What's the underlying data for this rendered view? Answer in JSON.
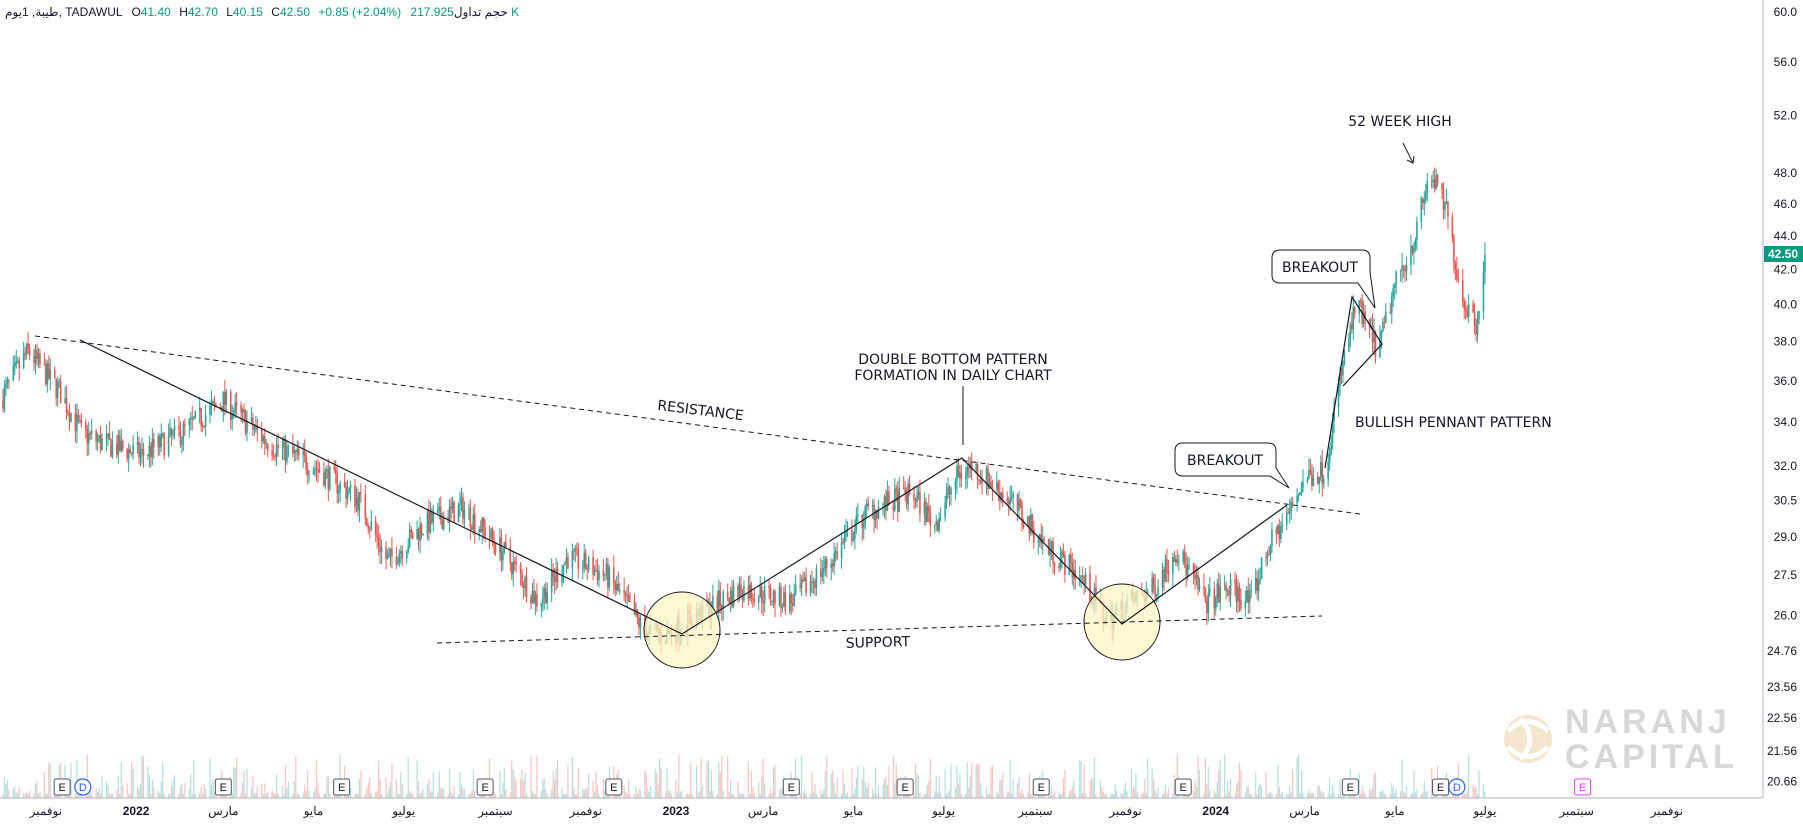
{
  "header": {
    "symbol": "طيبة, 1يوم, TADAWUL",
    "open_label": "O",
    "open": "41.40",
    "high_label": "H",
    "high": "42.70",
    "low_label": "L",
    "low": "40.15",
    "close_label": "C",
    "close": "42.50",
    "change": "+0.85 (+2.04%)",
    "volume_label": "حجم تداول",
    "volume": "217.925 K"
  },
  "price_badge": "42.50",
  "watermark": {
    "line1": "NARANJ",
    "line2": "CAPITAL"
  },
  "colors": {
    "up": "#26a69a",
    "down": "#ef5350",
    "text": "#131722",
    "badge": "#089981",
    "highlight": "#fff6c4",
    "watermark": "#d3d3d3"
  },
  "chart_data": {
    "type": "candlestick",
    "y_scale": "log",
    "ylim": [
      20.2,
      61.0
    ],
    "x_range": [
      "2021-10-01",
      "2025-01-05"
    ],
    "y_ticks": [
      60.0,
      56.0,
      52.0,
      48.0,
      46.0,
      44.0,
      42.0,
      40.0,
      38.0,
      36.0,
      34.0,
      32.0,
      30.5,
      29.0,
      27.5,
      26.0,
      24.76,
      23.56,
      22.56,
      21.56,
      20.66
    ],
    "x_ticks": [
      {
        "date": "2021-11-01",
        "label": "نوفمبر"
      },
      {
        "date": "2022-01-01",
        "label": "2022"
      },
      {
        "date": "2022-03-01",
        "label": "مارس"
      },
      {
        "date": "2022-05-01",
        "label": "مايو"
      },
      {
        "date": "2022-07-01",
        "label": "يوليو"
      },
      {
        "date": "2022-09-01",
        "label": "سبتمبر"
      },
      {
        "date": "2022-11-01",
        "label": "نوفمبر"
      },
      {
        "date": "2023-01-01",
        "label": "2023"
      },
      {
        "date": "2023-03-01",
        "label": "مارس"
      },
      {
        "date": "2023-05-01",
        "label": "مايو"
      },
      {
        "date": "2023-07-01",
        "label": "يوليو"
      },
      {
        "date": "2023-09-01",
        "label": "سبتمبر"
      },
      {
        "date": "2023-11-01",
        "label": "نوفمبر"
      },
      {
        "date": "2024-01-01",
        "label": "2024"
      },
      {
        "date": "2024-03-01",
        "label": "مارس"
      },
      {
        "date": "2024-05-01",
        "label": "مايو"
      },
      {
        "date": "2024-07-01",
        "label": "يوليو"
      },
      {
        "date": "2024-09-01",
        "label": "سبتمبر"
      },
      {
        "date": "2024-11-01",
        "label": "نوفمبر"
      }
    ],
    "price_path": [
      [
        "2021-10-01",
        35.0
      ],
      [
        "2021-10-20",
        37.5
      ],
      [
        "2021-11-10",
        35.5
      ],
      [
        "2021-11-25",
        33.5
      ],
      [
        "2021-12-10",
        33.0
      ],
      [
        "2022-01-05",
        32.5
      ],
      [
        "2022-02-01",
        33.5
      ],
      [
        "2022-03-01",
        35.0
      ],
      [
        "2022-04-01",
        33.0
      ],
      [
        "2022-05-01",
        32.0
      ],
      [
        "2022-06-01",
        30.5
      ],
      [
        "2022-06-20",
        28.0
      ],
      [
        "2022-07-15",
        29.5
      ],
      [
        "2022-08-10",
        30.2
      ],
      [
        "2022-09-05",
        28.5
      ],
      [
        "2022-09-30",
        26.5
      ],
      [
        "2022-10-20",
        28.2
      ],
      [
        "2022-11-15",
        27.5
      ],
      [
        "2022-12-10",
        25.5
      ],
      [
        "2022-12-25",
        25.3
      ],
      [
        "2023-01-15",
        26.0
      ],
      [
        "2023-02-15",
        27.0
      ],
      [
        "2023-03-20",
        26.5
      ],
      [
        "2023-04-15",
        28.0
      ],
      [
        "2023-05-10",
        30.0
      ],
      [
        "2023-06-10",
        30.8
      ],
      [
        "2023-06-25",
        29.5
      ],
      [
        "2023-07-10",
        31.5
      ],
      [
        "2023-07-20",
        32.0
      ],
      [
        "2023-08-15",
        30.5
      ],
      [
        "2023-09-10",
        28.5
      ],
      [
        "2023-10-01",
        27.5
      ],
      [
        "2023-10-20",
        25.8
      ],
      [
        "2023-11-05",
        26.5
      ],
      [
        "2023-11-20",
        27.0
      ],
      [
        "2023-12-05",
        28.5
      ],
      [
        "2023-12-25",
        26.5
      ],
      [
        "2024-01-10",
        27.0
      ],
      [
        "2024-01-25",
        26.5
      ],
      [
        "2024-02-05",
        28.5
      ],
      [
        "2024-02-20",
        30.0
      ],
      [
        "2024-03-01",
        31.5
      ],
      [
        "2024-03-15",
        31.8
      ],
      [
        "2024-03-25",
        36.0
      ],
      [
        "2024-04-05",
        40.0
      ],
      [
        "2024-04-20",
        37.5
      ],
      [
        "2024-05-01",
        41.0
      ],
      [
        "2024-05-15",
        44.0
      ],
      [
        "2024-05-25",
        48.0
      ],
      [
        "2024-06-05",
        45.5
      ],
      [
        "2024-06-15",
        40.5
      ],
      [
        "2024-06-25",
        39.0
      ],
      [
        "2024-07-01",
        42.5
      ]
    ],
    "annotations": {
      "resistance": "RESISTANCE",
      "support": "SUPPORT",
      "double_bottom_line1": "DOUBLE BOTTOM PATTERN",
      "double_bottom_line2": "FORMATION IN DAILY CHART",
      "breakout1": "BREAKOUT",
      "breakout2": "BREAKOUT",
      "pennant": "BULLISH PENNANT PATTERN",
      "high_52w": "52 WEEK HIGH"
    },
    "event_markers": [
      {
        "date": "2021-11-12",
        "label": "E"
      },
      {
        "date": "2021-11-26",
        "label": "D"
      },
      {
        "date": "2022-03-01",
        "label": "E"
      },
      {
        "date": "2022-05-20",
        "label": "E"
      },
      {
        "date": "2022-08-25",
        "label": "E"
      },
      {
        "date": "2022-11-20",
        "label": "E"
      },
      {
        "date": "2023-03-20",
        "label": "E"
      },
      {
        "date": "2023-06-05",
        "label": "E"
      },
      {
        "date": "2023-09-05",
        "label": "E"
      },
      {
        "date": "2023-12-10",
        "label": "E"
      },
      {
        "date": "2024-04-01",
        "label": "E"
      },
      {
        "date": "2024-06-01",
        "label": "E"
      },
      {
        "date": "2024-06-12",
        "label": "D"
      },
      {
        "date": "2024-09-05",
        "label": "E"
      }
    ]
  }
}
